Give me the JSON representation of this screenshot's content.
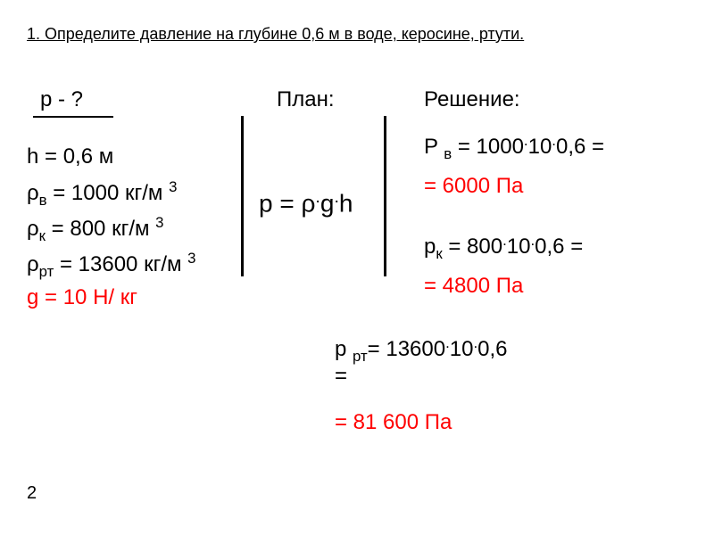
{
  "title": "1. Определите давление на глубине 0,6 м в воде, керосине, ртути.",
  "pq": "p - ?",
  "given": {
    "h": "h = 0,6 м",
    "rho_v_pre": "ρ",
    "rho_v_sub": "в",
    "rho_v_post": " = 1000 кг/м ",
    "rho_k_pre": " ρ",
    "rho_k_sub": "к",
    "rho_k_post": " = 800 кг/м ",
    "rho_rt_pre": " ρ",
    "rho_rt_sub": "рт",
    "rho_rt_post": " = 13600 кг/м ",
    "exp3": "3",
    "g": "g = 10 Н/ кг"
  },
  "plan": "План:",
  "formula_pre": "p = ρ",
  "formula_dot": ".",
  "formula_g": "g",
  "formula_h": "h",
  "solution_label": "Решение:",
  "sol": {
    "pv_pre": "P ",
    "pv_sub": "в",
    "pv_mid": " = 1000",
    "pv_mid2": "10",
    "pv_mid3": "0,6 =",
    "pv_res": "= 6000 Па",
    "pk_pre": "p",
    "pk_sub": "к",
    "pk_mid": " = 800",
    "pk_mid2": "10",
    "pk_mid3": "0,6 =",
    "pk_res": "= 4800 Па",
    "prt_pre": "p ",
    "prt_sub": "рт",
    "prt_mid": "= 13600",
    "prt_mid2": "10",
    "prt_mid3": "0,6",
    "prt_eqb": "=",
    "prt_res": "= 81 600 Па"
  },
  "pagenum": "2",
  "colors": {
    "text": "#000000",
    "accent": "#ff0000",
    "bg": "#ffffff"
  }
}
